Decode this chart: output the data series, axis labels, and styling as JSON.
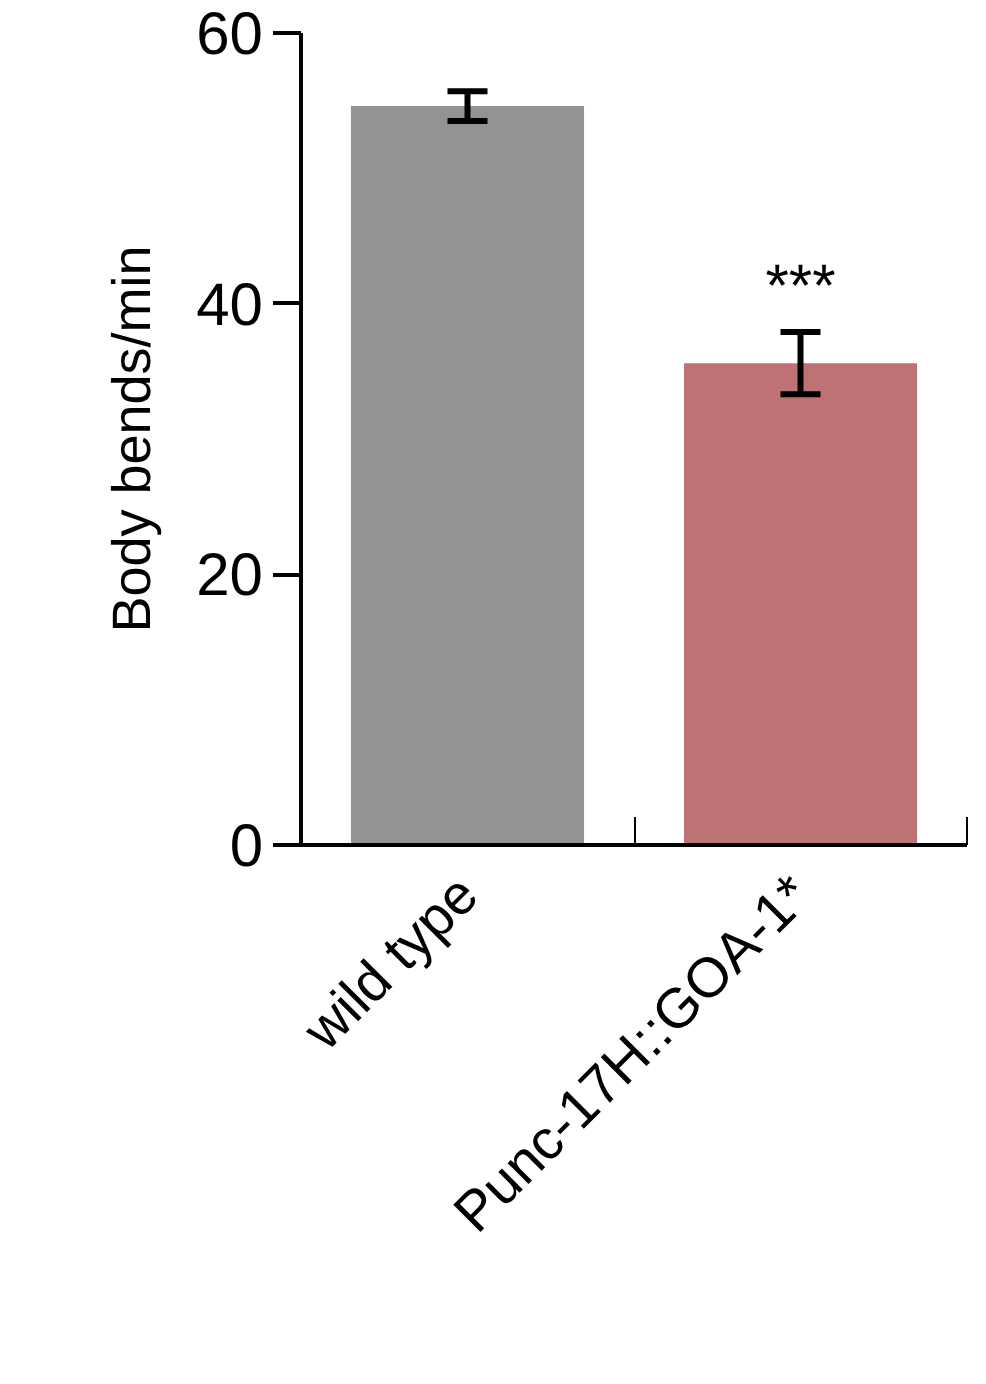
{
  "chart_data": {
    "type": "bar",
    "ylabel": "Body bends/min",
    "categories": [
      "wild type",
      "Punc-17H::GOA-1*"
    ],
    "values": [
      54.6,
      35.6
    ],
    "colors": [
      "#939393",
      "#be7275"
    ],
    "errors": [
      1.1,
      2.3
    ],
    "ylim": [
      0,
      60
    ],
    "yticks": [
      0,
      20,
      40,
      60
    ],
    "grid": false,
    "annotations": [
      "***"
    ]
  }
}
